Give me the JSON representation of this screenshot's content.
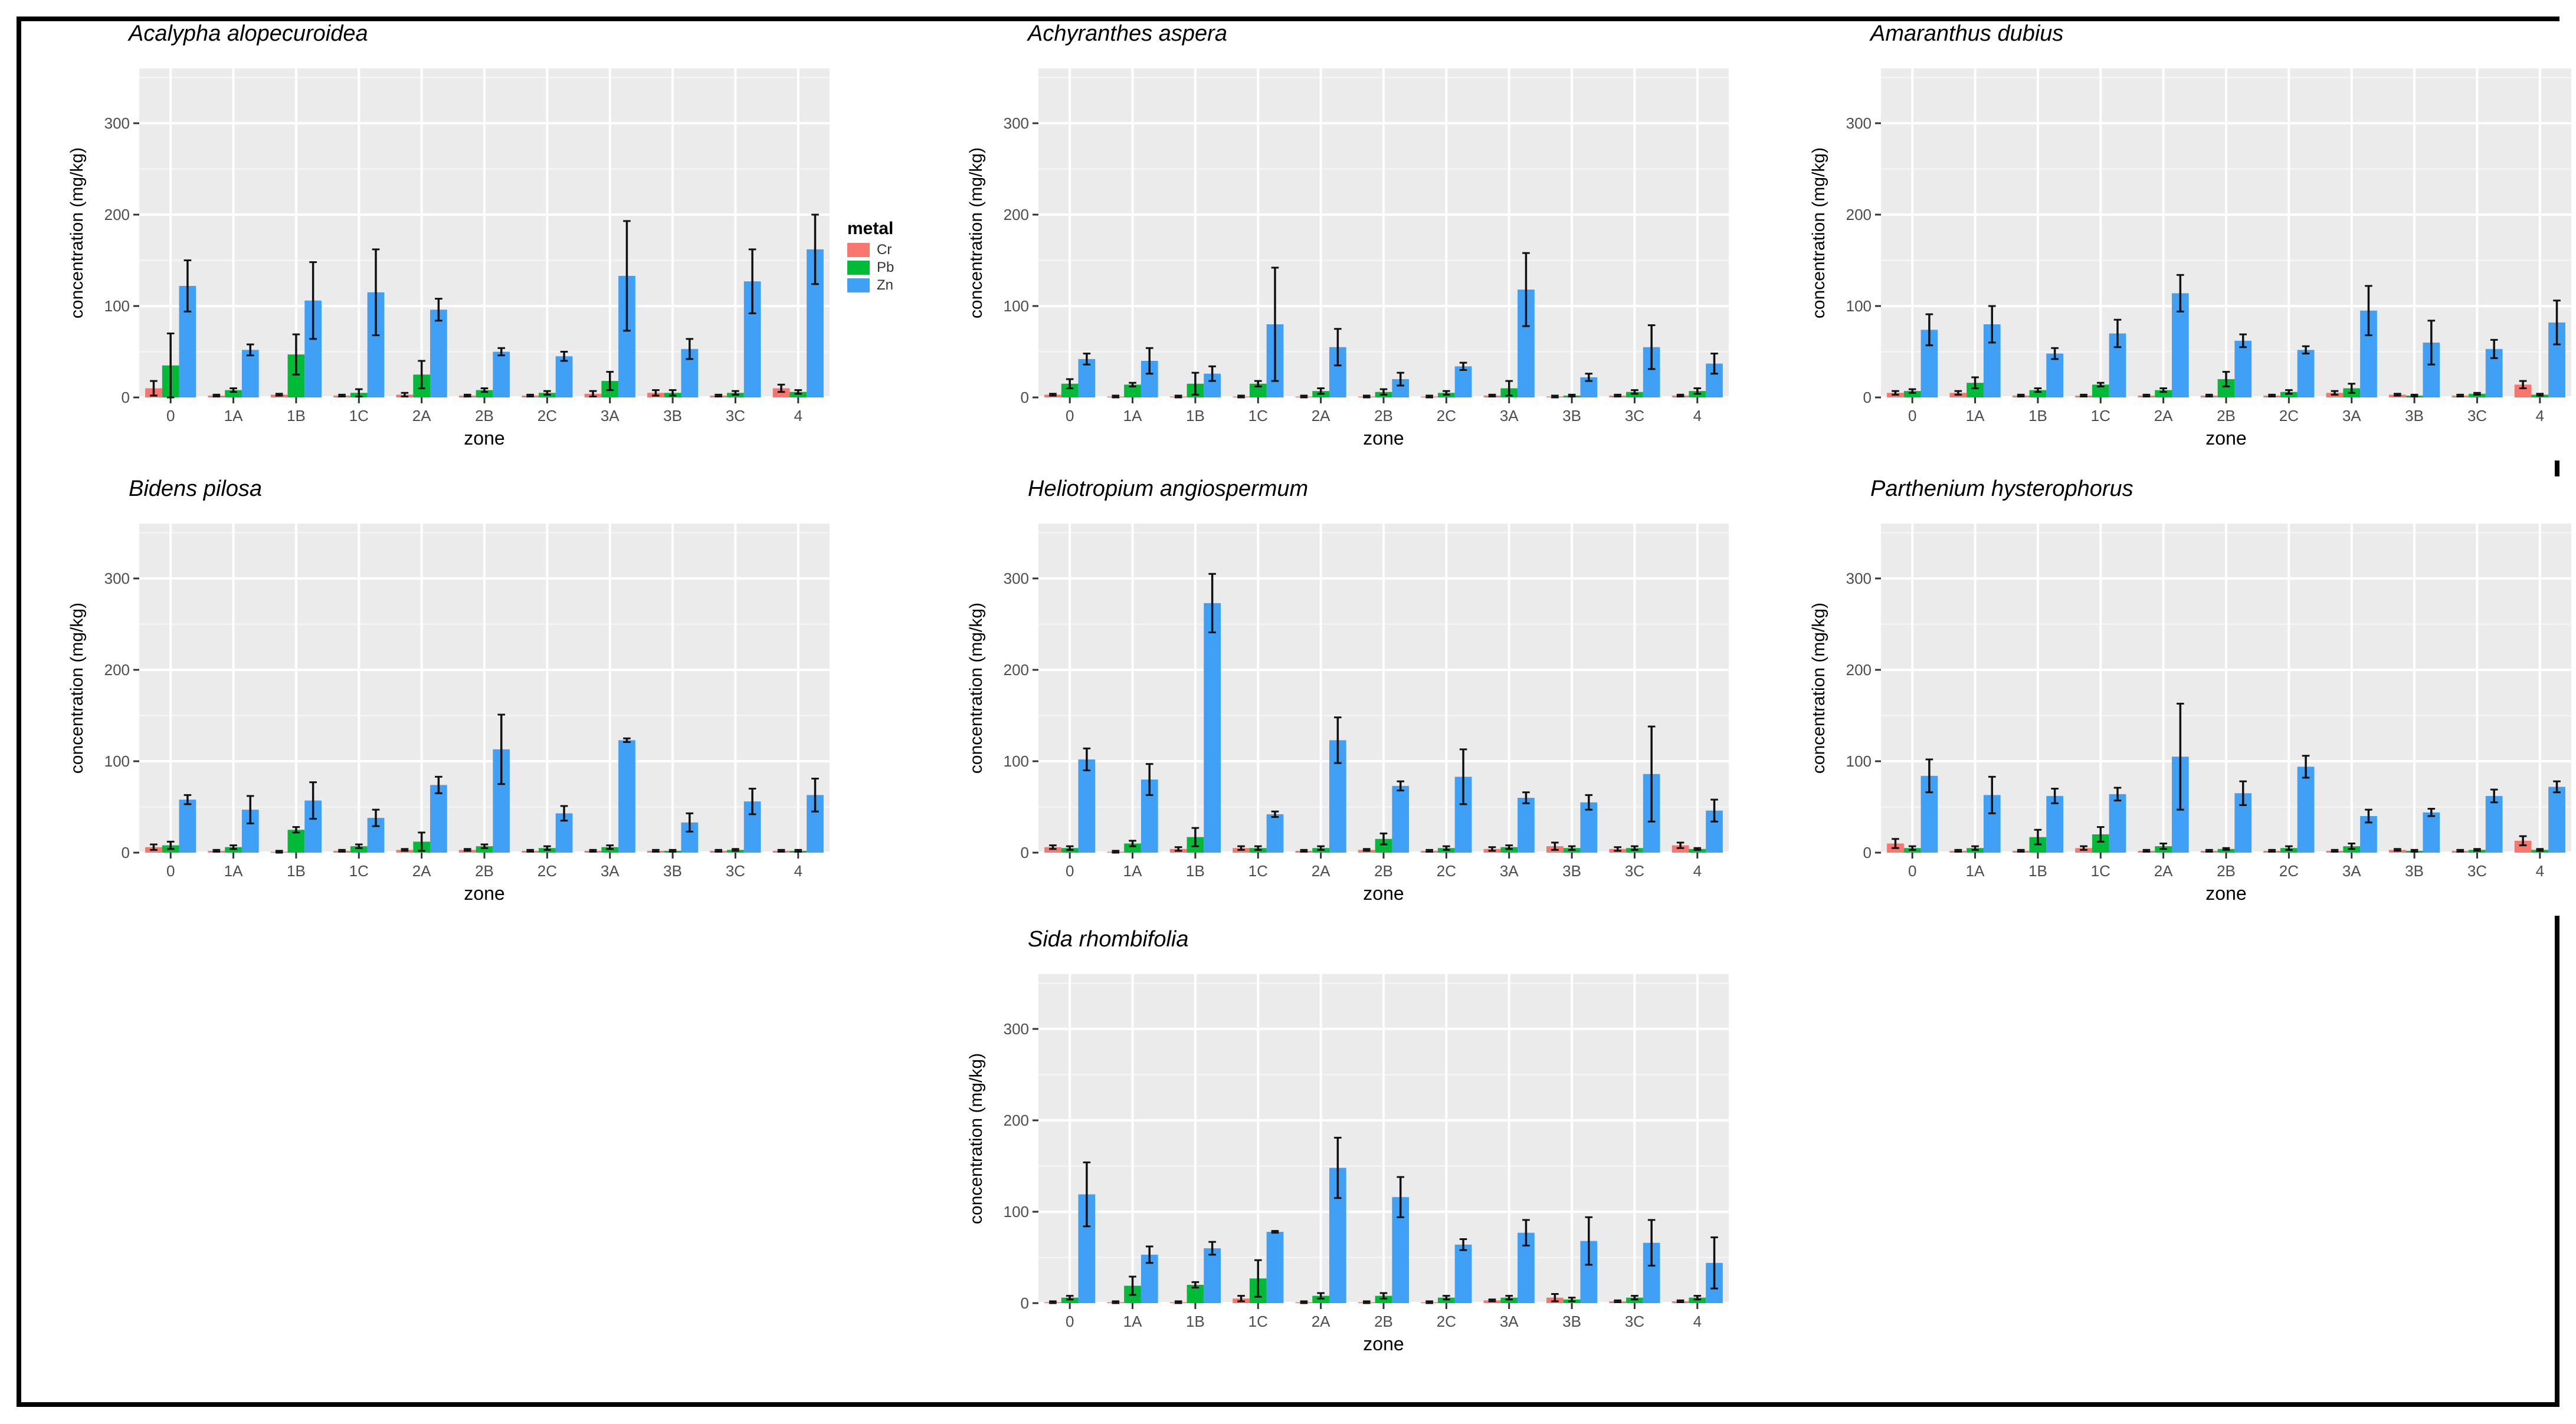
{
  "legend": {
    "title": "metal",
    "items": [
      {
        "label": "Cr",
        "color": "#F8766D"
      },
      {
        "label": "Pb",
        "color": "#00BA38"
      },
      {
        "label": "Zn",
        "color": "#3FA0F5"
      }
    ]
  },
  "chart_data": [
    {
      "type": "bar",
      "title": "Acalypha alopecuroidea",
      "xlabel": "zone",
      "ylabel": "concentration (mg/kg)",
      "ylim": [
        0,
        360
      ],
      "yticks": [
        0,
        100,
        200,
        300
      ],
      "categories": [
        "0",
        "1A",
        "1B",
        "1C",
        "2A",
        "2B",
        "2C",
        "3A",
        "3B",
        "3C",
        "4"
      ],
      "series": [
        {
          "name": "Cr",
          "values": [
            10,
            2,
            3,
            2,
            3,
            2,
            2,
            4,
            5,
            2,
            10
          ],
          "errors": [
            8,
            1,
            1,
            1,
            2,
            1,
            1,
            3,
            3,
            1,
            4
          ]
        },
        {
          "name": "Pb",
          "values": [
            35,
            8,
            47,
            5,
            25,
            8,
            5,
            18,
            5,
            5,
            6
          ],
          "errors": [
            35,
            2,
            22,
            4,
            15,
            2,
            2,
            10,
            3,
            2,
            2
          ]
        },
        {
          "name": "Zn",
          "values": [
            122,
            52,
            106,
            115,
            96,
            50,
            45,
            133,
            53,
            127,
            162
          ],
          "errors": [
            28,
            6,
            42,
            47,
            12,
            4,
            5,
            60,
            11,
            35,
            38
          ]
        }
      ]
    },
    {
      "type": "bar",
      "title": "Achyranthes aspera",
      "xlabel": "zone",
      "ylabel": "concentration (mg/kg)",
      "ylim": [
        0,
        360
      ],
      "yticks": [
        0,
        100,
        200,
        300
      ],
      "categories": [
        "0",
        "1A",
        "1B",
        "1C",
        "2A",
        "2B",
        "2C",
        "3A",
        "3B",
        "3C",
        "4"
      ],
      "series": [
        {
          "name": "Cr",
          "values": [
            3,
            1,
            1,
            1,
            1,
            1,
            1,
            2,
            1,
            2,
            2
          ],
          "errors": [
            1,
            1,
            1,
            1,
            1,
            1,
            1,
            1,
            1,
            1,
            1
          ]
        },
        {
          "name": "Pb",
          "values": [
            15,
            14,
            15,
            15,
            7,
            6,
            5,
            10,
            2,
            6,
            7
          ],
          "errors": [
            5,
            2,
            12,
            3,
            3,
            3,
            2,
            8,
            1,
            2,
            3
          ]
        },
        {
          "name": "Zn",
          "values": [
            42,
            40,
            26,
            80,
            55,
            20,
            34,
            118,
            22,
            55,
            37
          ],
          "errors": [
            6,
            14,
            8,
            62,
            20,
            7,
            4,
            40,
            4,
            24,
            11
          ]
        }
      ]
    },
    {
      "type": "bar",
      "title": "Amaranthus dubius",
      "xlabel": "zone",
      "ylabel": "concentration (mg/kg)",
      "ylim": [
        0,
        360
      ],
      "yticks": [
        0,
        100,
        200,
        300
      ],
      "categories": [
        "0",
        "1A",
        "1B",
        "1C",
        "2A",
        "2B",
        "2C",
        "3A",
        "3B",
        "3C",
        "4"
      ],
      "series": [
        {
          "name": "Cr",
          "values": [
            5,
            5,
            2,
            2,
            2,
            2,
            2,
            5,
            3,
            2,
            14
          ],
          "errors": [
            2,
            2,
            1,
            1,
            1,
            1,
            1,
            2,
            1,
            1,
            4
          ]
        },
        {
          "name": "Pb",
          "values": [
            7,
            16,
            8,
            14,
            8,
            20,
            6,
            10,
            2,
            4,
            3
          ],
          "errors": [
            2,
            6,
            2,
            2,
            2,
            8,
            2,
            5,
            1,
            1,
            1
          ]
        },
        {
          "name": "Zn",
          "values": [
            74,
            80,
            48,
            70,
            114,
            62,
            52,
            95,
            60,
            53,
            82
          ],
          "errors": [
            17,
            20,
            6,
            15,
            20,
            7,
            4,
            27,
            24,
            10,
            24
          ]
        }
      ]
    },
    {
      "type": "bar",
      "title": "Bidens pilosa",
      "xlabel": "zone",
      "ylabel": "concentration (mg/kg)",
      "ylim": [
        0,
        360
      ],
      "yticks": [
        0,
        100,
        200,
        300
      ],
      "categories": [
        "0",
        "1A",
        "1B",
        "1C",
        "2A",
        "2B",
        "2C",
        "3A",
        "3B",
        "3C",
        "4"
      ],
      "series": [
        {
          "name": "Cr",
          "values": [
            6,
            2,
            1,
            2,
            3,
            3,
            2,
            2,
            2,
            2,
            2
          ],
          "errors": [
            3,
            1,
            1,
            1,
            1,
            1,
            1,
            1,
            1,
            1,
            1
          ]
        },
        {
          "name": "Pb",
          "values": [
            8,
            6,
            25,
            7,
            12,
            7,
            5,
            6,
            2,
            3,
            2
          ],
          "errors": [
            4,
            2,
            3,
            2,
            10,
            2,
            2,
            2,
            1,
            1,
            1
          ]
        },
        {
          "name": "Zn",
          "values": [
            58,
            47,
            57,
            38,
            74,
            113,
            43,
            123,
            33,
            56,
            63
          ],
          "errors": [
            5,
            15,
            20,
            9,
            9,
            38,
            8,
            2,
            10,
            14,
            18
          ]
        }
      ]
    },
    {
      "type": "bar",
      "title": "Heliotropium angiospermum",
      "xlabel": "zone",
      "ylabel": "concentration (mg/kg)",
      "ylim": [
        0,
        360
      ],
      "yticks": [
        0,
        100,
        200,
        300
      ],
      "categories": [
        "0",
        "1A",
        "1B",
        "1C",
        "2A",
        "2B",
        "2C",
        "3A",
        "3B",
        "3C",
        "4"
      ],
      "series": [
        {
          "name": "Cr",
          "values": [
            6,
            1,
            4,
            5,
            2,
            3,
            2,
            4,
            7,
            4,
            8
          ],
          "errors": [
            2,
            1,
            2,
            2,
            1,
            1,
            1,
            2,
            4,
            2,
            3
          ]
        },
        {
          "name": "Pb",
          "values": [
            5,
            10,
            17,
            5,
            5,
            15,
            5,
            6,
            5,
            5,
            4
          ],
          "errors": [
            2,
            3,
            10,
            2,
            2,
            6,
            2,
            2,
            2,
            2,
            1
          ]
        },
        {
          "name": "Zn",
          "values": [
            102,
            80,
            273,
            42,
            123,
            73,
            83,
            60,
            55,
            86,
            46
          ],
          "errors": [
            12,
            17,
            32,
            3,
            25,
            5,
            30,
            6,
            8,
            52,
            12
          ]
        }
      ]
    },
    {
      "type": "bar",
      "title": "Parthenium hysterophorus",
      "xlabel": "zone",
      "ylabel": "concentration (mg/kg)",
      "ylim": [
        0,
        360
      ],
      "yticks": [
        0,
        100,
        200,
        300
      ],
      "categories": [
        "0",
        "1A",
        "1B",
        "1C",
        "2A",
        "2B",
        "2C",
        "3A",
        "3B",
        "3C",
        "4"
      ],
      "series": [
        {
          "name": "Cr",
          "values": [
            10,
            2,
            2,
            5,
            2,
            2,
            2,
            2,
            3,
            2,
            13
          ],
          "errors": [
            5,
            1,
            1,
            2,
            1,
            1,
            1,
            1,
            1,
            1,
            5
          ]
        },
        {
          "name": "Pb",
          "values": [
            5,
            5,
            17,
            20,
            7,
            4,
            5,
            7,
            2,
            3,
            3
          ],
          "errors": [
            2,
            2,
            8,
            8,
            3,
            1,
            2,
            3,
            1,
            1,
            1
          ]
        },
        {
          "name": "Zn",
          "values": [
            84,
            63,
            62,
            64,
            105,
            65,
            94,
            40,
            44,
            62,
            72
          ],
          "errors": [
            18,
            20,
            8,
            7,
            58,
            13,
            12,
            7,
            4,
            7,
            6
          ]
        }
      ]
    },
    {
      "type": "bar",
      "title": "Sida rhombifolia",
      "xlabel": "zone",
      "ylabel": "concentration (mg/kg)",
      "ylim": [
        0,
        360
      ],
      "yticks": [
        0,
        100,
        200,
        300
      ],
      "categories": [
        "0",
        "1A",
        "1B",
        "1C",
        "2A",
        "2B",
        "2C",
        "3A",
        "3B",
        "3C",
        "4"
      ],
      "series": [
        {
          "name": "Cr",
          "values": [
            1,
            1,
            1,
            5,
            1,
            1,
            1,
            3,
            6,
            2,
            2
          ],
          "errors": [
            1,
            1,
            1,
            3,
            1,
            1,
            1,
            1,
            4,
            1,
            1
          ]
        },
        {
          "name": "Pb",
          "values": [
            6,
            19,
            20,
            27,
            8,
            8,
            6,
            6,
            4,
            6,
            6
          ],
          "errors": [
            2,
            10,
            3,
            20,
            3,
            3,
            2,
            2,
            2,
            2,
            2
          ]
        },
        {
          "name": "Zn",
          "values": [
            119,
            53,
            60,
            78,
            148,
            116,
            64,
            77,
            68,
            66,
            44
          ],
          "errors": [
            35,
            9,
            7,
            1,
            33,
            22,
            6,
            14,
            26,
            25,
            28
          ]
        }
      ]
    }
  ]
}
